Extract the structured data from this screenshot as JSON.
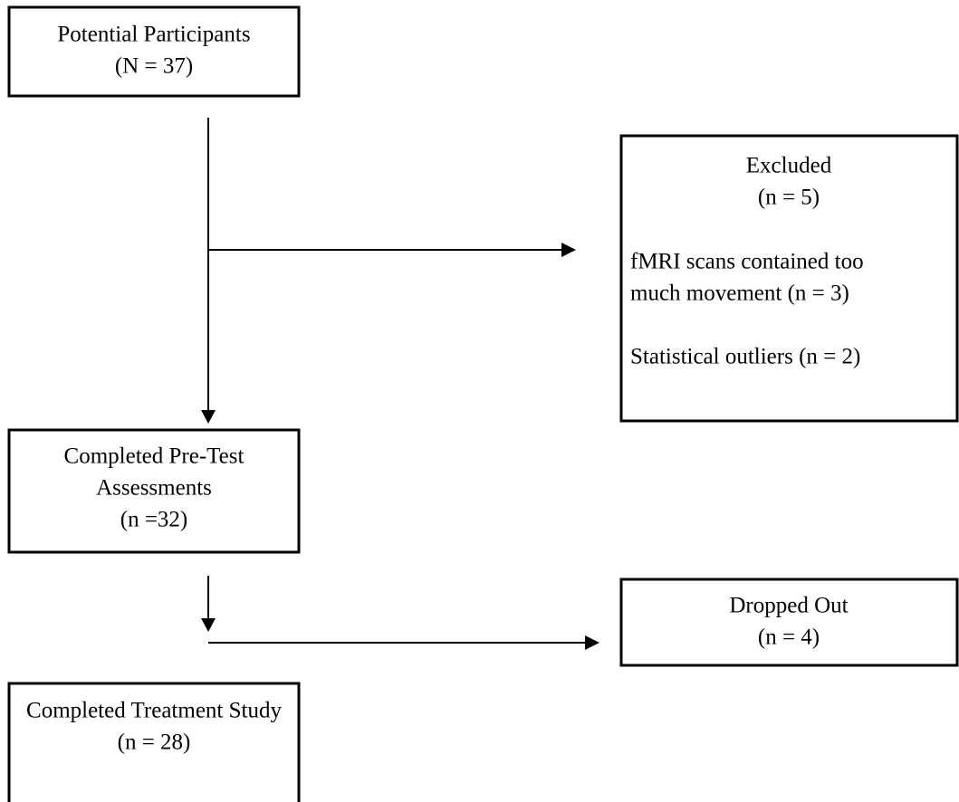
{
  "nodes": [
    {
      "lines": [
        "Potential Participants",
        "(N = 37)"
      ]
    },
    {
      "lines": [
        "Excluded",
        "(n = 5)",
        "fMRI scans contained too",
        "much movement (n = 3)",
        "Statistical outliers (n = 2)"
      ]
    },
    {
      "lines": [
        "Completed Pre-Test",
        "Assessments",
        "(n =32)"
      ]
    },
    {
      "lines": [
        "Dropped Out",
        "(n = 4)"
      ]
    },
    {
      "lines": [
        "Completed Treatment Study",
        "(n = 28)"
      ]
    }
  ]
}
